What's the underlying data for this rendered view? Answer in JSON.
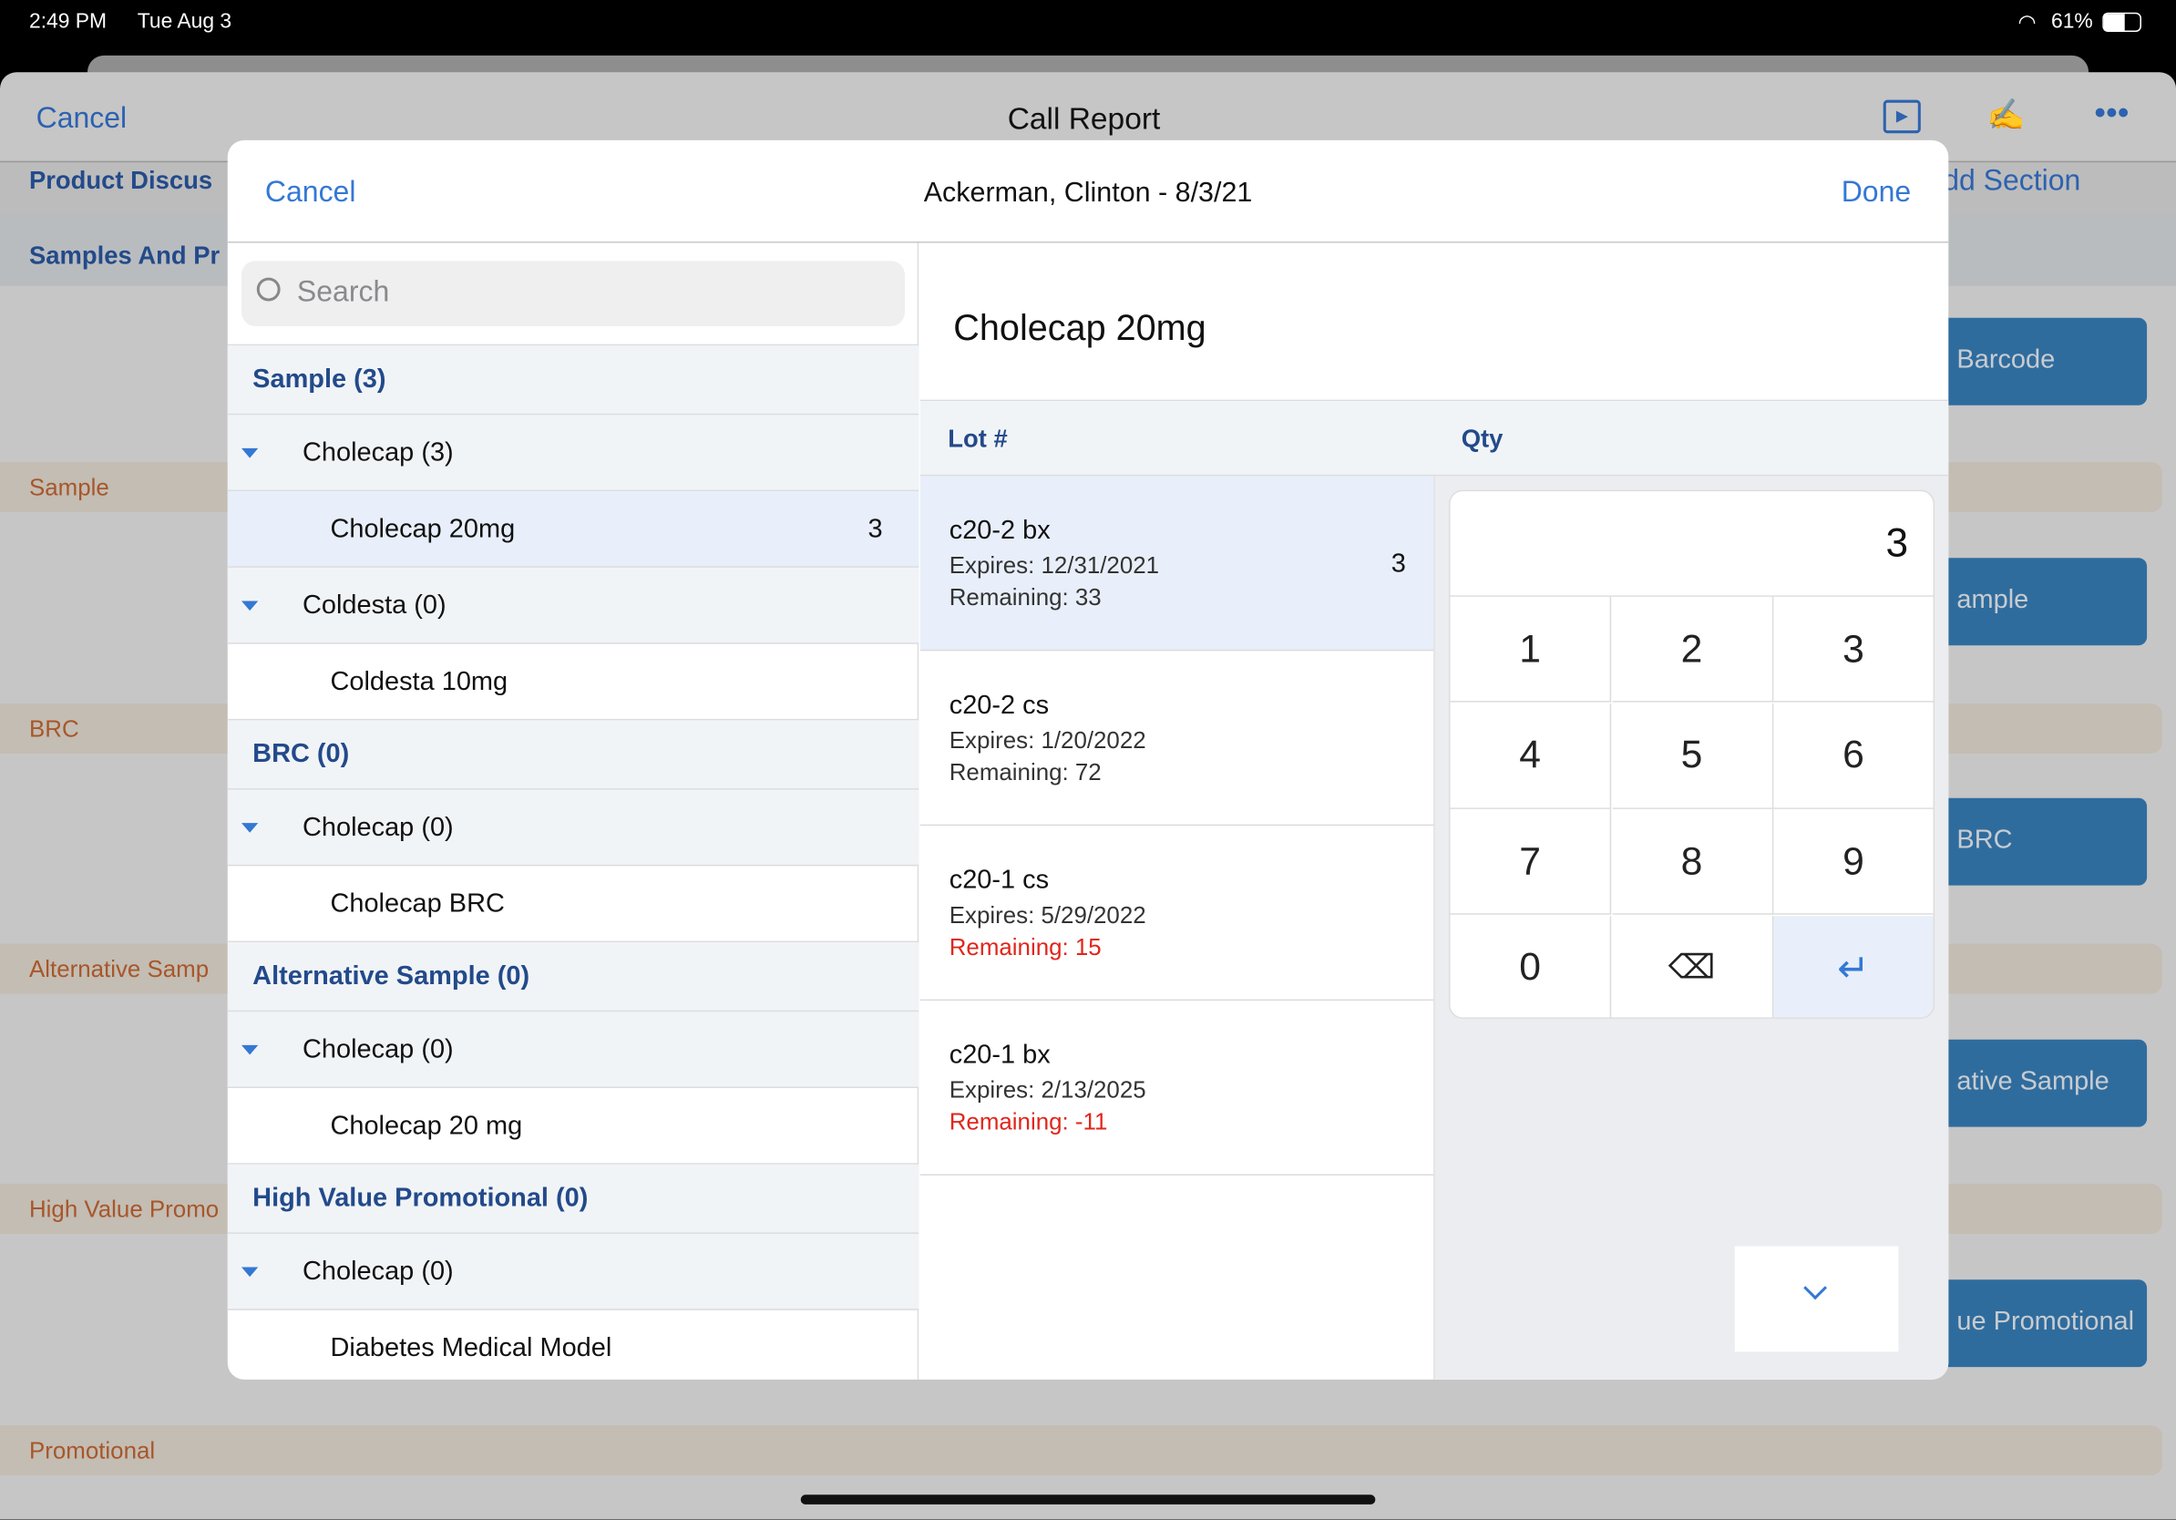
{
  "status_bar": {
    "time": "2:49 PM",
    "date": "Tue Aug 3",
    "battery": "61%"
  },
  "background": {
    "cancel": "Cancel",
    "title": "Call Report",
    "add_section": "dd Section",
    "sections": [
      "Product Discus",
      "Samples And Pr"
    ],
    "strips": [
      "Sample",
      "BRC",
      "Alternative Samp",
      "High Value Promo",
      "Promotional"
    ],
    "buttons": [
      "Barcode",
      "ample",
      "BRC",
      "ative Sample",
      "ue Promotional"
    ]
  },
  "modal": {
    "cancel": "Cancel",
    "title": "Ackerman, Clinton - 8/3/21",
    "done": "Done",
    "search_placeholder": "Search",
    "product_title": "Cholecap 20mg",
    "col_lot": "Lot #",
    "col_qty": "Qty",
    "tree": [
      {
        "type": "group",
        "label": "Sample (3)"
      },
      {
        "type": "parent",
        "label": "Cholecap (3)"
      },
      {
        "type": "child",
        "label": "Cholecap 20mg",
        "count": "3",
        "selected": true
      },
      {
        "type": "parent",
        "label": "Coldesta (0)"
      },
      {
        "type": "child",
        "label": "Coldesta 10mg"
      },
      {
        "type": "group",
        "label": "BRC (0)"
      },
      {
        "type": "parent",
        "label": "Cholecap (0)"
      },
      {
        "type": "child",
        "label": "Cholecap BRC"
      },
      {
        "type": "group",
        "label": "Alternative Sample (0)"
      },
      {
        "type": "parent",
        "label": "Cholecap (0)"
      },
      {
        "type": "child",
        "label": "Cholecap 20 mg"
      },
      {
        "type": "group",
        "label": "High Value Promotional (0)"
      },
      {
        "type": "parent",
        "label": "Cholecap (0)"
      },
      {
        "type": "child",
        "label": "Diabetes Medical Model"
      }
    ],
    "lots": [
      {
        "name": "c20-2 bx",
        "expires": "Expires: 12/31/2021",
        "remaining": "Remaining: 33",
        "qty": "3",
        "low": false,
        "selected": true
      },
      {
        "name": "c20-2 cs",
        "expires": "Expires: 1/20/2022",
        "remaining": "Remaining: 72",
        "qty": "",
        "low": false
      },
      {
        "name": "c20-1 cs",
        "expires": "Expires: 5/29/2022",
        "remaining": "Remaining: 15",
        "qty": "",
        "low": true
      },
      {
        "name": "c20-1 bx",
        "expires": "Expires: 2/13/2025",
        "remaining": "Remaining: -11",
        "qty": "",
        "low": true
      }
    ],
    "keypad": {
      "display": "3",
      "keys": [
        "1",
        "2",
        "3",
        "4",
        "5",
        "6",
        "7",
        "8",
        "9",
        "0"
      ]
    }
  }
}
